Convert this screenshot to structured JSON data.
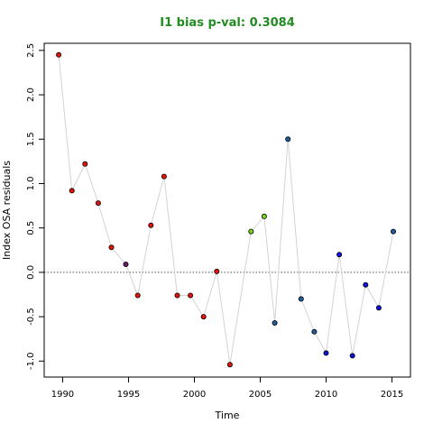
{
  "chart_data": {
    "type": "scatter",
    "title": "I1 bias p-val: 0.3084",
    "title_color": "#228B22",
    "xlabel": "Time",
    "ylabel": "Index OSA residuals",
    "xlim": [
      1988.6,
      2016.4
    ],
    "ylim": [
      -1.18,
      2.58
    ],
    "x_ticks": [
      1990,
      1995,
      2000,
      2005,
      2010,
      2015
    ],
    "x_tick_labels": [
      "1990",
      "1995",
      "2000",
      "2005",
      "2010",
      "2015"
    ],
    "y_ticks": [
      2.5,
      2.0,
      1.5,
      1.0,
      0.5,
      0.0,
      -0.5,
      -1.0
    ],
    "y_tick_labels": [
      "2.5",
      "2.0",
      "1.5",
      "1.0",
      "0.5",
      "0.0",
      "-0.5",
      "-1.0"
    ],
    "reference_line_y": 0,
    "line_color": "#d3d3d3",
    "points": [
      {
        "x": 1989.7,
        "y": 2.45,
        "color": "#e8120a"
      },
      {
        "x": 1990.7,
        "y": 0.92,
        "color": "#e8120a"
      },
      {
        "x": 1991.7,
        "y": 1.22,
        "color": "#e8120a"
      },
      {
        "x": 1992.7,
        "y": 0.78,
        "color": "#e8120a"
      },
      {
        "x": 1993.7,
        "y": 0.28,
        "color": "#e8120a"
      },
      {
        "x": 1994.8,
        "y": 0.09,
        "color": "#6a1b6e"
      },
      {
        "x": 1995.7,
        "y": -0.26,
        "color": "#e8120a"
      },
      {
        "x": 1996.7,
        "y": 0.53,
        "color": "#e8120a"
      },
      {
        "x": 1997.7,
        "y": 1.08,
        "color": "#e8120a"
      },
      {
        "x": 1998.7,
        "y": -0.26,
        "color": "#e8120a"
      },
      {
        "x": 1999.7,
        "y": -0.26,
        "color": "#e8120a"
      },
      {
        "x": 2000.7,
        "y": -0.5,
        "color": "#e8120a"
      },
      {
        "x": 2001.7,
        "y": 0.01,
        "color": "#e8120a"
      },
      {
        "x": 2002.7,
        "y": -1.04,
        "color": "#e8120a"
      },
      {
        "x": 2004.3,
        "y": 0.46,
        "color": "#7ed321"
      },
      {
        "x": 2005.3,
        "y": 0.63,
        "color": "#7ed321"
      },
      {
        "x": 2006.1,
        "y": -0.57,
        "color": "#1f5e9e"
      },
      {
        "x": 2007.1,
        "y": 1.5,
        "color": "#1f5e9e"
      },
      {
        "x": 2008.1,
        "y": -0.3,
        "color": "#1f5e9e"
      },
      {
        "x": 2009.1,
        "y": -0.67,
        "color": "#1f5e9e"
      },
      {
        "x": 2010.0,
        "y": -0.91,
        "color": "#1010dd"
      },
      {
        "x": 2011.0,
        "y": 0.2,
        "color": "#1010dd"
      },
      {
        "x": 2012.0,
        "y": -0.94,
        "color": "#1010dd"
      },
      {
        "x": 2013.0,
        "y": -0.14,
        "color": "#1010dd"
      },
      {
        "x": 2014.0,
        "y": -0.4,
        "color": "#1010dd"
      },
      {
        "x": 2015.1,
        "y": 0.46,
        "color": "#1f5e9e"
      }
    ]
  }
}
